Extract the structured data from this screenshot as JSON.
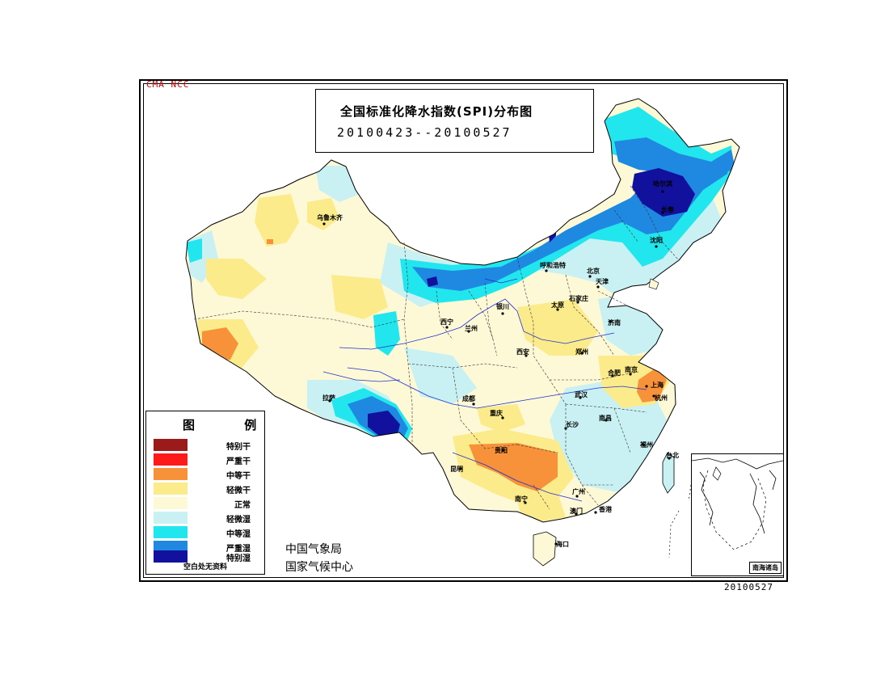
{
  "title": {
    "main": "全国标准化降水指数(SPI)分布图",
    "period": "20100423--20100527"
  },
  "corner_tag": "CMA NCC",
  "date_stamp": "20100527",
  "legend": {
    "title": "图 例",
    "items": [
      {
        "label": "特别干",
        "color": "#9b1a1a"
      },
      {
        "label": "严重干",
        "color": "#ff1a1a"
      },
      {
        "label": "中等干",
        "color": "#f7923a"
      },
      {
        "label": "轻微干",
        "color": "#fbeb8a"
      },
      {
        "label": "正常",
        "color": "#fdf8d6"
      },
      {
        "label": "轻微湿",
        "color": "#c9f0f2"
      },
      {
        "label": "中等湿",
        "color": "#22e6ee"
      },
      {
        "label": "严重湿",
        "color": "#1f88e0"
      },
      {
        "label": "特别湿",
        "color": "#12119e"
      }
    ],
    "note": "空白处无资料"
  },
  "org": {
    "line1": "中国气象局",
    "line2": "国家气候中心"
  },
  "inset_label": "南海诸岛",
  "cities": [
    {
      "name": "乌鲁木齐"
    },
    {
      "name": "哈尔滨"
    },
    {
      "name": "长春"
    },
    {
      "name": "沈阳"
    },
    {
      "name": "呼和浩特"
    },
    {
      "name": "北京"
    },
    {
      "name": "天津"
    },
    {
      "name": "银川"
    },
    {
      "name": "太原"
    },
    {
      "name": "石家庄"
    },
    {
      "name": "济南"
    },
    {
      "name": "西宁"
    },
    {
      "name": "兰州"
    },
    {
      "name": "西安"
    },
    {
      "name": "郑州"
    },
    {
      "name": "合肥"
    },
    {
      "name": "南京"
    },
    {
      "name": "上海"
    },
    {
      "name": "杭州"
    },
    {
      "name": "武汉"
    },
    {
      "name": "成都"
    },
    {
      "name": "拉萨"
    },
    {
      "name": "重庆"
    },
    {
      "name": "长沙"
    },
    {
      "name": "南昌"
    },
    {
      "name": "福州"
    },
    {
      "name": "贵阳"
    },
    {
      "name": "昆明"
    },
    {
      "name": "台北"
    },
    {
      "name": "南宁"
    },
    {
      "name": "广州"
    },
    {
      "name": "澳门"
    },
    {
      "name": "香港"
    },
    {
      "name": "海口"
    }
  ]
}
